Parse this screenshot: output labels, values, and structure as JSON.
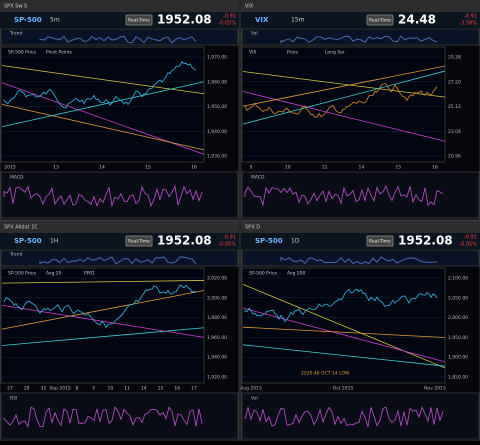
{
  "panels": [
    {
      "window": "SPX Sw S",
      "symbol": "SP-500",
      "interval": "5m",
      "price": "1952.08",
      "change": "-0.91",
      "change_pct": "-0.05%",
      "button": "Real-Time",
      "legend": [
        "SP-500 Price",
        "Pivot Points"
      ],
      "top_indicator": "Trend",
      "bottom_indicator": "MACD",
      "x_labels": [
        "2015",
        "13",
        "14",
        "15",
        "16"
      ],
      "y_labels": [
        "1,970.00",
        "1,960.00",
        "1,950.00",
        "1,940.00",
        "1,930.00"
      ],
      "line_color": "#35b8e8"
    },
    {
      "window": "VIX",
      "symbol": "VIX",
      "interval": "15m",
      "price": "24.48",
      "change": "-0.91",
      "change_pct": "-3.58%",
      "button": "Real-Time",
      "legend": [
        "VIX",
        "Price",
        "Long Sar"
      ],
      "top_indicator": "Vol",
      "bottom_indicator": "MACD",
      "x_labels": [
        "9",
        "10",
        "11",
        "14",
        "15",
        "16"
      ],
      "y_labels": [
        "29.28",
        "27.20",
        "25.12",
        "23.04",
        "20.96"
      ],
      "line_color": "#e08a2a"
    },
    {
      "window": "SPX Alldat 1C",
      "symbol": "SP-500",
      "interval": "1H",
      "price": "1952.08",
      "change": "-0.91",
      "change_pct": "-0.05%",
      "button": "Real-Time",
      "legend": [
        "SP-500 Price",
        "Avg 20",
        "PP01"
      ],
      "top_indicator": "Trend",
      "bottom_indicator": "RSI",
      "x_labels": [
        "27",
        "28",
        "31",
        "Sep 2015",
        "8",
        "9",
        "10",
        "11",
        "14",
        "15",
        "16",
        "17"
      ],
      "y_labels": [
        "2,020.00",
        "2,000.00",
        "1,980.00",
        "1,960.00",
        "1,940.00",
        "1,920.00"
      ],
      "line_color": "#35b8e8"
    },
    {
      "window": "SPX D",
      "symbol": "SP-500",
      "interval": "1D",
      "price": "1952.08",
      "change": "-0.91",
      "change_pct": "-0.05%",
      "button": "Real-Time",
      "legend": [
        "SP-500 Price",
        "Avg 200"
      ],
      "top_indicator": "",
      "bottom_indicator": "Vol",
      "x_labels": [
        "Aug 2015",
        "Oct 2015",
        "Nov 2015"
      ],
      "y_labels": [
        "2,100.00",
        "2,050.00",
        "2,000.00",
        "1,950.00",
        "1,900.00",
        "1,850.00"
      ],
      "line_color": "#35b8e8",
      "note": "2020.46 OCT 14 LOW"
    }
  ]
}
